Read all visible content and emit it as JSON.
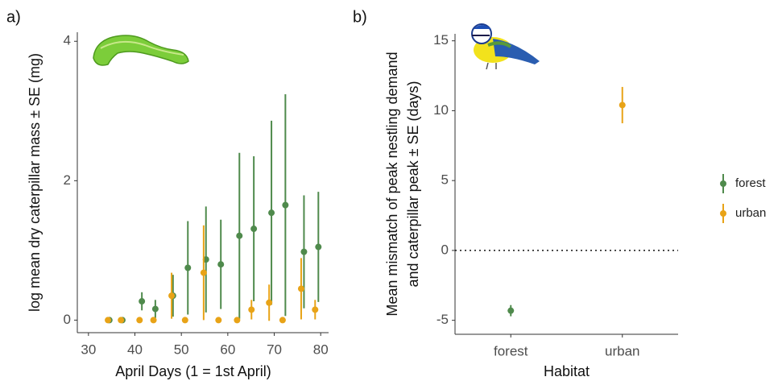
{
  "chart_data": [
    {
      "type": "errorbar",
      "label": "a)",
      "xlabel": "April Days (1 = 1st April)",
      "ylabel": "log mean dry caterpillar mass ± SE (mg)",
      "xlim": [
        27.6,
        81.7
      ],
      "ylim": [
        -0.18,
        4.13
      ],
      "xticks": [
        30,
        40,
        50,
        60,
        70,
        80
      ],
      "yticks": [
        0,
        2,
        4
      ],
      "series": [
        {
          "name": "forest",
          "color": "#4f8a4c",
          "x": [
            34.5,
            37.3,
            41.5,
            44.4,
            48.2,
            51.4,
            55.3,
            58.5,
            62.5,
            65.6,
            69.4,
            72.4,
            76.4,
            79.5
          ],
          "values": [
            0,
            0,
            0.27,
            0.16,
            0.35,
            0.75,
            0.87,
            0.8,
            1.21,
            1.31,
            1.54,
            1.65,
            0.98,
            1.05
          ],
          "errors": [
            0,
            0,
            0.13,
            0.13,
            0.3,
            0.67,
            0.76,
            0.64,
            1.19,
            1.04,
            1.32,
            1.59,
            0.81,
            0.79
          ]
        },
        {
          "name": "urban",
          "color": "#e8a317",
          "x": [
            34.2,
            37,
            41,
            44,
            47.9,
            50.8,
            54.8,
            58,
            62,
            65.1,
            68.9,
            71.8,
            75.8,
            78.8
          ],
          "values": [
            0,
            0,
            0,
            0,
            0.35,
            0,
            0.68,
            0,
            0,
            0.15,
            0.25,
            0,
            0.45,
            0.15
          ],
          "errors": [
            0,
            0,
            0,
            0,
            0.33,
            0,
            0.68,
            0,
            0,
            0.14,
            0.26,
            0,
            0.44,
            0.14
          ]
        }
      ]
    },
    {
      "type": "category_errorbar",
      "label": "b)",
      "xlabel": "Habitat",
      "ylabel": [
        "Mean mismatch of peak nestling demand",
        "and caterpillar peak ± SE (days)"
      ],
      "categories": [
        "forest",
        "urban"
      ],
      "values": [
        -4.31,
        10.4
      ],
      "errors": [
        0.4,
        1.3
      ],
      "colors": [
        "#4f8a4c",
        "#e8a317"
      ],
      "hline": 0,
      "ylim": [
        -6,
        15.5
      ],
      "yticks": [
        -5,
        0,
        5,
        10,
        15
      ],
      "legend": "right"
    }
  ]
}
